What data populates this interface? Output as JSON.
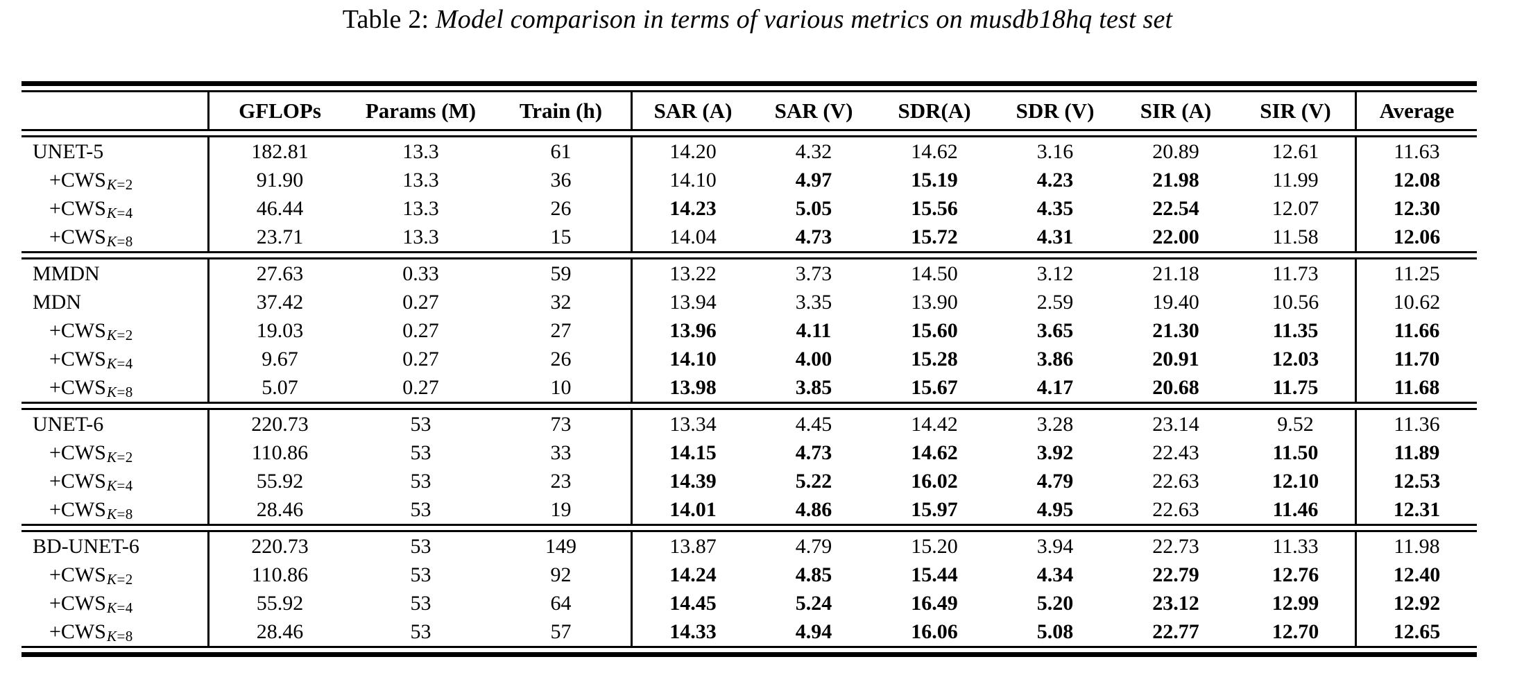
{
  "title": {
    "prefix": "Table 2:",
    "text": "Model comparison in terms of various metrics on musdb18hq test set"
  },
  "table": {
    "columns": [
      "",
      "GFLOPs",
      "Params (M)",
      "Train (h)",
      "SAR (A)",
      "SAR (V)",
      "SDR(A)",
      "SDR (V)",
      "SIR (A)",
      "SIR (V)",
      "Average"
    ],
    "sections": [
      {
        "rows": [
          {
            "label": "UNET-5",
            "sub": "",
            "indent": false,
            "values": [
              "182.81",
              "13.3",
              "61",
              "14.20",
              "4.32",
              "14.62",
              "3.16",
              "20.89",
              "12.61",
              "11.63"
            ],
            "bold": []
          },
          {
            "label": "+CWS",
            "sub": "K=2",
            "indent": true,
            "values": [
              "91.90",
              "13.3",
              "36",
              "14.10",
              "4.97",
              "15.19",
              "4.23",
              "21.98",
              "11.99",
              "12.08"
            ],
            "bold": [
              4,
              5,
              6,
              7,
              9
            ]
          },
          {
            "label": "+CWS",
            "sub": "K=4",
            "indent": true,
            "values": [
              "46.44",
              "13.3",
              "26",
              "14.23",
              "5.05",
              "15.56",
              "4.35",
              "22.54",
              "12.07",
              "12.30"
            ],
            "bold": [
              3,
              4,
              5,
              6,
              7,
              9
            ]
          },
          {
            "label": "+CWS",
            "sub": "K=8",
            "indent": true,
            "values": [
              "23.71",
              "13.3",
              "15",
              "14.04",
              "4.73",
              "15.72",
              "4.31",
              "22.00",
              "11.58",
              "12.06"
            ],
            "bold": [
              4,
              5,
              6,
              7,
              9
            ]
          }
        ]
      },
      {
        "rows": [
          {
            "label": "MMDN",
            "sub": "",
            "indent": false,
            "values": [
              "27.63",
              "0.33",
              "59",
              "13.22",
              "3.73",
              "14.50",
              "3.12",
              "21.18",
              "11.73",
              "11.25"
            ],
            "bold": []
          },
          {
            "label": "MDN",
            "sub": "",
            "indent": false,
            "values": [
              "37.42",
              "0.27",
              "32",
              "13.94",
              "3.35",
              "13.90",
              "2.59",
              "19.40",
              "10.56",
              "10.62"
            ],
            "bold": []
          },
          {
            "label": "+CWS",
            "sub": "K=2",
            "indent": true,
            "values": [
              "19.03",
              "0.27",
              "27",
              "13.96",
              "4.11",
              "15.60",
              "3.65",
              "21.30",
              "11.35",
              "11.66"
            ],
            "bold": [
              3,
              4,
              5,
              6,
              7,
              8,
              9
            ]
          },
          {
            "label": "+CWS",
            "sub": "K=4",
            "indent": true,
            "values": [
              "9.67",
              "0.27",
              "26",
              "14.10",
              "4.00",
              "15.28",
              "3.86",
              "20.91",
              "12.03",
              "11.70"
            ],
            "bold": [
              3,
              4,
              5,
              6,
              7,
              8,
              9
            ]
          },
          {
            "label": "+CWS",
            "sub": "K=8",
            "indent": true,
            "values": [
              "5.07",
              "0.27",
              "10",
              "13.98",
              "3.85",
              "15.67",
              "4.17",
              "20.68",
              "11.75",
              "11.68"
            ],
            "bold": [
              3,
              4,
              5,
              6,
              7,
              8,
              9
            ]
          }
        ]
      },
      {
        "rows": [
          {
            "label": "UNET-6",
            "sub": "",
            "indent": false,
            "values": [
              "220.73",
              "53",
              "73",
              "13.34",
              "4.45",
              "14.42",
              "3.28",
              "23.14",
              "9.52",
              "11.36"
            ],
            "bold": []
          },
          {
            "label": "+CWS",
            "sub": "K=2",
            "indent": true,
            "values": [
              "110.86",
              "53",
              "33",
              "14.15",
              "4.73",
              "14.62",
              "3.92",
              "22.43",
              "11.50",
              "11.89"
            ],
            "bold": [
              3,
              4,
              5,
              6,
              8,
              9
            ]
          },
          {
            "label": "+CWS",
            "sub": "K=4",
            "indent": true,
            "values": [
              "55.92",
              "53",
              "23",
              "14.39",
              "5.22",
              "16.02",
              "4.79",
              "22.63",
              "12.10",
              "12.53"
            ],
            "bold": [
              3,
              4,
              5,
              6,
              8,
              9
            ]
          },
          {
            "label": "+CWS",
            "sub": "K=8",
            "indent": true,
            "values": [
              "28.46",
              "53",
              "19",
              "14.01",
              "4.86",
              "15.97",
              "4.95",
              "22.63",
              "11.46",
              "12.31"
            ],
            "bold": [
              3,
              4,
              5,
              6,
              8,
              9
            ]
          }
        ]
      },
      {
        "rows": [
          {
            "label": "BD-UNET-6",
            "sub": "",
            "indent": false,
            "values": [
              "220.73",
              "53",
              "149",
              "13.87",
              "4.79",
              "15.20",
              "3.94",
              "22.73",
              "11.33",
              "11.98"
            ],
            "bold": []
          },
          {
            "label": "+CWS",
            "sub": "K=2",
            "indent": true,
            "values": [
              "110.86",
              "53",
              "92",
              "14.24",
              "4.85",
              "15.44",
              "4.34",
              "22.79",
              "12.76",
              "12.40"
            ],
            "bold": [
              3,
              4,
              5,
              6,
              7,
              8,
              9
            ]
          },
          {
            "label": "+CWS",
            "sub": "K=4",
            "indent": true,
            "values": [
              "55.92",
              "53",
              "64",
              "14.45",
              "5.24",
              "16.49",
              "5.20",
              "23.12",
              "12.99",
              "12.92"
            ],
            "bold": [
              3,
              4,
              5,
              6,
              7,
              8,
              9
            ]
          },
          {
            "label": "+CWS",
            "sub": "K=8",
            "indent": true,
            "values": [
              "28.46",
              "53",
              "57",
              "14.33",
              "4.94",
              "16.06",
              "5.08",
              "22.77",
              "12.70",
              "12.65"
            ],
            "bold": [
              3,
              4,
              5,
              6,
              7,
              8,
              9
            ]
          }
        ]
      }
    ]
  }
}
